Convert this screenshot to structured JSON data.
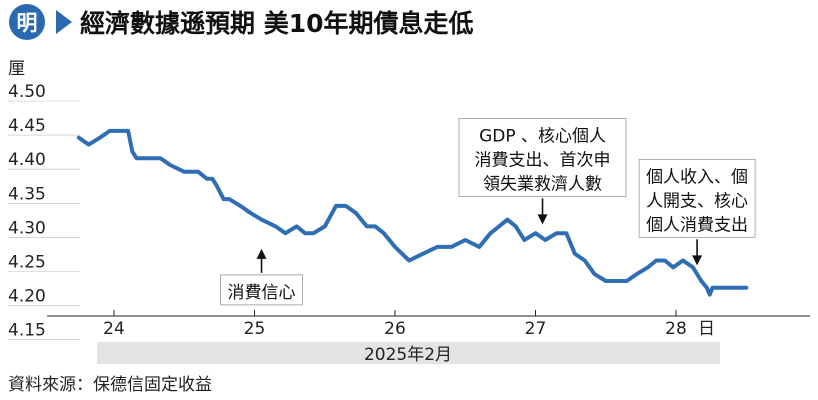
{
  "title": "經濟數據遜預期  美10年期債息走低",
  "logo_text": "明",
  "source": "資料來源：保德信固定收益",
  "colors": {
    "line": "#2f6db5",
    "logo_bg": "#2a69b0",
    "month_band": "#e3e3e3"
  },
  "chart_data": {
    "type": "line",
    "title": "經濟數據遜預期  美10年期債息走低",
    "ylabel": "厘",
    "xlabel": "2025年2月",
    "x_unit": "日",
    "ylim": [
      4.15,
      4.5
    ],
    "yticks": [
      "4.50",
      "4.45",
      "4.40",
      "4.35",
      "4.30",
      "4.25",
      "4.20",
      "4.15"
    ],
    "xticks": [
      "24",
      "25",
      "26",
      "27",
      "28"
    ],
    "grid": false,
    "series": [
      {
        "x": [
          23.75,
          23.82,
          23.9,
          23.97,
          24.0,
          24.05,
          24.1,
          24.13,
          24.16,
          24.2,
          24.26,
          24.33,
          24.4,
          24.5,
          24.6,
          24.66,
          24.7,
          24.73,
          24.78,
          24.82,
          24.9,
          24.97,
          25.05,
          25.15,
          25.22,
          25.3,
          25.36,
          25.42,
          25.5,
          25.58,
          25.65,
          25.72,
          25.8,
          25.86,
          25.92,
          26.0,
          26.1,
          26.2,
          26.3,
          26.4,
          26.5,
          26.6,
          26.68,
          26.74,
          26.8,
          26.86,
          26.92,
          27.0,
          27.07,
          27.15,
          27.22,
          27.28,
          27.35,
          27.42,
          27.5,
          27.58,
          27.65,
          27.72,
          27.8,
          27.86,
          27.92,
          27.98,
          28.05,
          28.12,
          28.18,
          28.22,
          28.24,
          28.26,
          28.3,
          28.4,
          28.5
        ],
        "y": [
          4.43,
          4.42,
          4.43,
          4.44,
          4.44,
          4.44,
          4.44,
          4.41,
          4.4,
          4.4,
          4.4,
          4.4,
          4.39,
          4.38,
          4.38,
          4.37,
          4.37,
          4.36,
          4.34,
          4.34,
          4.33,
          4.32,
          4.31,
          4.3,
          4.29,
          4.3,
          4.29,
          4.29,
          4.3,
          4.33,
          4.33,
          4.32,
          4.3,
          4.3,
          4.29,
          4.27,
          4.25,
          4.26,
          4.27,
          4.27,
          4.28,
          4.27,
          4.29,
          4.3,
          4.31,
          4.3,
          4.28,
          4.29,
          4.28,
          4.29,
          4.29,
          4.26,
          4.25,
          4.23,
          4.22,
          4.22,
          4.22,
          4.23,
          4.24,
          4.25,
          4.25,
          4.24,
          4.25,
          4.24,
          4.22,
          4.21,
          4.2,
          4.21,
          4.21,
          4.21,
          4.21
        ]
      }
    ],
    "annotations": [
      {
        "lines": [
          "消費信心"
        ],
        "x": 25.05,
        "y": 4.27,
        "box": "below",
        "arrow": "up"
      },
      {
        "lines": [
          "GDP 、核心個人",
          "消費支出、首次申",
          "領失業救濟人數"
        ],
        "x": 27.05,
        "y": 4.3,
        "box": "above",
        "arrow": "down"
      },
      {
        "lines": [
          "個人收入、個",
          "人開支、核心",
          "個人消費支出"
        ],
        "x": 28.15,
        "y": 4.24,
        "box": "above",
        "arrow": "down"
      }
    ]
  }
}
